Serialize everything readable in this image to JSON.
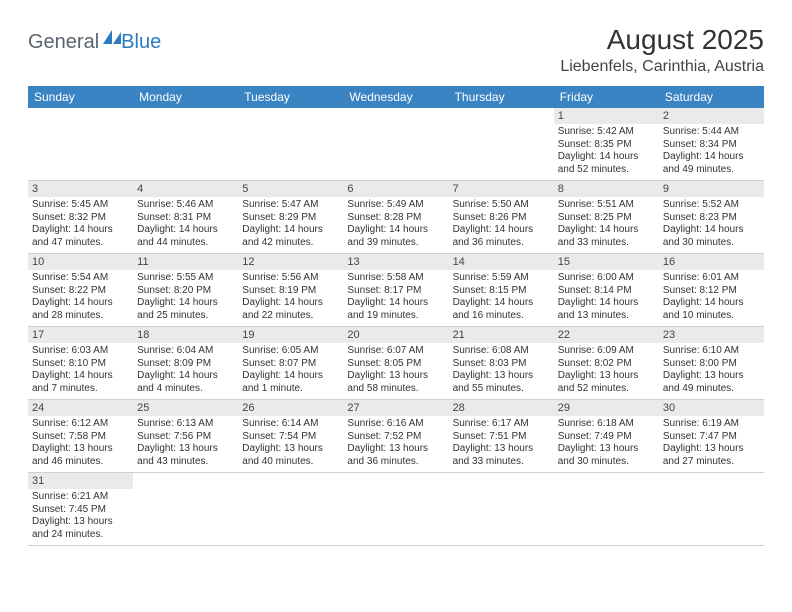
{
  "branding": {
    "logo_general": "General",
    "logo_blue": "Blue",
    "logo_shape_color": "#2b7bbf"
  },
  "header": {
    "title": "August 2025",
    "location": "Liebenfels, Carinthia, Austria"
  },
  "colors": {
    "header_row_bg": "#3b84c4",
    "header_row_text": "#ffffff",
    "daynum_bg": "#eaeaea",
    "border": "#d0d0d0"
  },
  "day_labels": [
    "Sunday",
    "Monday",
    "Tuesday",
    "Wednesday",
    "Thursday",
    "Friday",
    "Saturday"
  ],
  "weeks": [
    [
      null,
      null,
      null,
      null,
      null,
      {
        "n": "1",
        "sr": "Sunrise: 5:42 AM",
        "ss": "Sunset: 8:35 PM",
        "d1": "Daylight: 14 hours",
        "d2": "and 52 minutes."
      },
      {
        "n": "2",
        "sr": "Sunrise: 5:44 AM",
        "ss": "Sunset: 8:34 PM",
        "d1": "Daylight: 14 hours",
        "d2": "and 49 minutes."
      }
    ],
    [
      {
        "n": "3",
        "sr": "Sunrise: 5:45 AM",
        "ss": "Sunset: 8:32 PM",
        "d1": "Daylight: 14 hours",
        "d2": "and 47 minutes."
      },
      {
        "n": "4",
        "sr": "Sunrise: 5:46 AM",
        "ss": "Sunset: 8:31 PM",
        "d1": "Daylight: 14 hours",
        "d2": "and 44 minutes."
      },
      {
        "n": "5",
        "sr": "Sunrise: 5:47 AM",
        "ss": "Sunset: 8:29 PM",
        "d1": "Daylight: 14 hours",
        "d2": "and 42 minutes."
      },
      {
        "n": "6",
        "sr": "Sunrise: 5:49 AM",
        "ss": "Sunset: 8:28 PM",
        "d1": "Daylight: 14 hours",
        "d2": "and 39 minutes."
      },
      {
        "n": "7",
        "sr": "Sunrise: 5:50 AM",
        "ss": "Sunset: 8:26 PM",
        "d1": "Daylight: 14 hours",
        "d2": "and 36 minutes."
      },
      {
        "n": "8",
        "sr": "Sunrise: 5:51 AM",
        "ss": "Sunset: 8:25 PM",
        "d1": "Daylight: 14 hours",
        "d2": "and 33 minutes."
      },
      {
        "n": "9",
        "sr": "Sunrise: 5:52 AM",
        "ss": "Sunset: 8:23 PM",
        "d1": "Daylight: 14 hours",
        "d2": "and 30 minutes."
      }
    ],
    [
      {
        "n": "10",
        "sr": "Sunrise: 5:54 AM",
        "ss": "Sunset: 8:22 PM",
        "d1": "Daylight: 14 hours",
        "d2": "and 28 minutes."
      },
      {
        "n": "11",
        "sr": "Sunrise: 5:55 AM",
        "ss": "Sunset: 8:20 PM",
        "d1": "Daylight: 14 hours",
        "d2": "and 25 minutes."
      },
      {
        "n": "12",
        "sr": "Sunrise: 5:56 AM",
        "ss": "Sunset: 8:19 PM",
        "d1": "Daylight: 14 hours",
        "d2": "and 22 minutes."
      },
      {
        "n": "13",
        "sr": "Sunrise: 5:58 AM",
        "ss": "Sunset: 8:17 PM",
        "d1": "Daylight: 14 hours",
        "d2": "and 19 minutes."
      },
      {
        "n": "14",
        "sr": "Sunrise: 5:59 AM",
        "ss": "Sunset: 8:15 PM",
        "d1": "Daylight: 14 hours",
        "d2": "and 16 minutes."
      },
      {
        "n": "15",
        "sr": "Sunrise: 6:00 AM",
        "ss": "Sunset: 8:14 PM",
        "d1": "Daylight: 14 hours",
        "d2": "and 13 minutes."
      },
      {
        "n": "16",
        "sr": "Sunrise: 6:01 AM",
        "ss": "Sunset: 8:12 PM",
        "d1": "Daylight: 14 hours",
        "d2": "and 10 minutes."
      }
    ],
    [
      {
        "n": "17",
        "sr": "Sunrise: 6:03 AM",
        "ss": "Sunset: 8:10 PM",
        "d1": "Daylight: 14 hours",
        "d2": "and 7 minutes."
      },
      {
        "n": "18",
        "sr": "Sunrise: 6:04 AM",
        "ss": "Sunset: 8:09 PM",
        "d1": "Daylight: 14 hours",
        "d2": "and 4 minutes."
      },
      {
        "n": "19",
        "sr": "Sunrise: 6:05 AM",
        "ss": "Sunset: 8:07 PM",
        "d1": "Daylight: 14 hours",
        "d2": "and 1 minute."
      },
      {
        "n": "20",
        "sr": "Sunrise: 6:07 AM",
        "ss": "Sunset: 8:05 PM",
        "d1": "Daylight: 13 hours",
        "d2": "and 58 minutes."
      },
      {
        "n": "21",
        "sr": "Sunrise: 6:08 AM",
        "ss": "Sunset: 8:03 PM",
        "d1": "Daylight: 13 hours",
        "d2": "and 55 minutes."
      },
      {
        "n": "22",
        "sr": "Sunrise: 6:09 AM",
        "ss": "Sunset: 8:02 PM",
        "d1": "Daylight: 13 hours",
        "d2": "and 52 minutes."
      },
      {
        "n": "23",
        "sr": "Sunrise: 6:10 AM",
        "ss": "Sunset: 8:00 PM",
        "d1": "Daylight: 13 hours",
        "d2": "and 49 minutes."
      }
    ],
    [
      {
        "n": "24",
        "sr": "Sunrise: 6:12 AM",
        "ss": "Sunset: 7:58 PM",
        "d1": "Daylight: 13 hours",
        "d2": "and 46 minutes."
      },
      {
        "n": "25",
        "sr": "Sunrise: 6:13 AM",
        "ss": "Sunset: 7:56 PM",
        "d1": "Daylight: 13 hours",
        "d2": "and 43 minutes."
      },
      {
        "n": "26",
        "sr": "Sunrise: 6:14 AM",
        "ss": "Sunset: 7:54 PM",
        "d1": "Daylight: 13 hours",
        "d2": "and 40 minutes."
      },
      {
        "n": "27",
        "sr": "Sunrise: 6:16 AM",
        "ss": "Sunset: 7:52 PM",
        "d1": "Daylight: 13 hours",
        "d2": "and 36 minutes."
      },
      {
        "n": "28",
        "sr": "Sunrise: 6:17 AM",
        "ss": "Sunset: 7:51 PM",
        "d1": "Daylight: 13 hours",
        "d2": "and 33 minutes."
      },
      {
        "n": "29",
        "sr": "Sunrise: 6:18 AM",
        "ss": "Sunset: 7:49 PM",
        "d1": "Daylight: 13 hours",
        "d2": "and 30 minutes."
      },
      {
        "n": "30",
        "sr": "Sunrise: 6:19 AM",
        "ss": "Sunset: 7:47 PM",
        "d1": "Daylight: 13 hours",
        "d2": "and 27 minutes."
      }
    ],
    [
      {
        "n": "31",
        "sr": "Sunrise: 6:21 AM",
        "ss": "Sunset: 7:45 PM",
        "d1": "Daylight: 13 hours",
        "d2": "and 24 minutes."
      },
      null,
      null,
      null,
      null,
      null,
      null
    ]
  ]
}
